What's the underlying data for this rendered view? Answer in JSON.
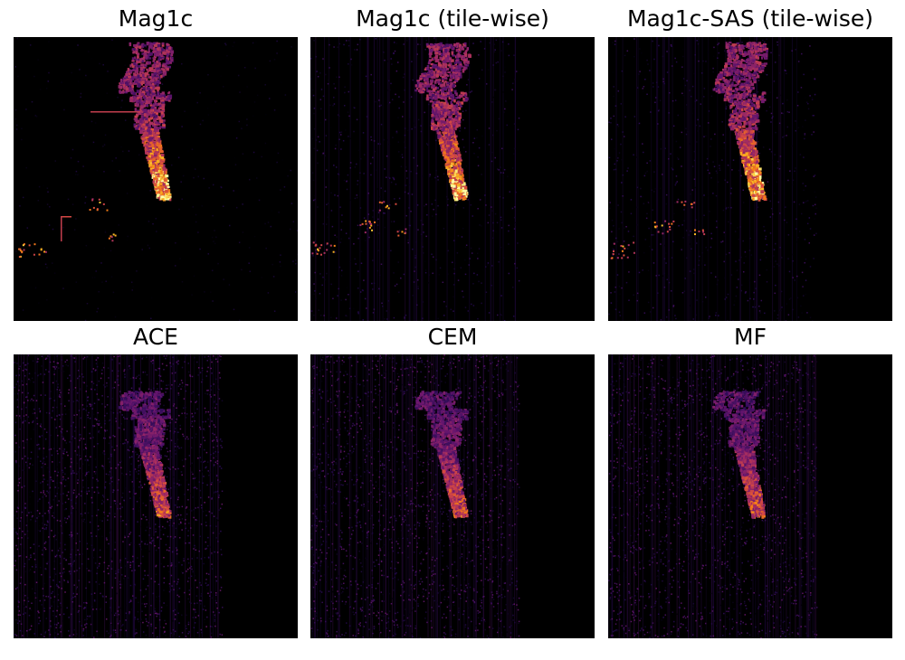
{
  "figure": {
    "panels": [
      {
        "title": "Mag1c",
        "method": "mag1c"
      },
      {
        "title": "Mag1c (tile-wise)",
        "method": "mag1c-tilewise"
      },
      {
        "title": "Mag1c-SAS (tile-wise)",
        "method": "mag1c-sas-tilewise"
      },
      {
        "title": "ACE",
        "method": "ace"
      },
      {
        "title": "CEM",
        "method": "cem"
      },
      {
        "title": "MF",
        "method": "mf"
      }
    ],
    "colormap": "inferno",
    "colors": {
      "background": "#000000",
      "low": "#1b0c41",
      "mid": "#a52c60",
      "high": "#fcffa4"
    }
  }
}
